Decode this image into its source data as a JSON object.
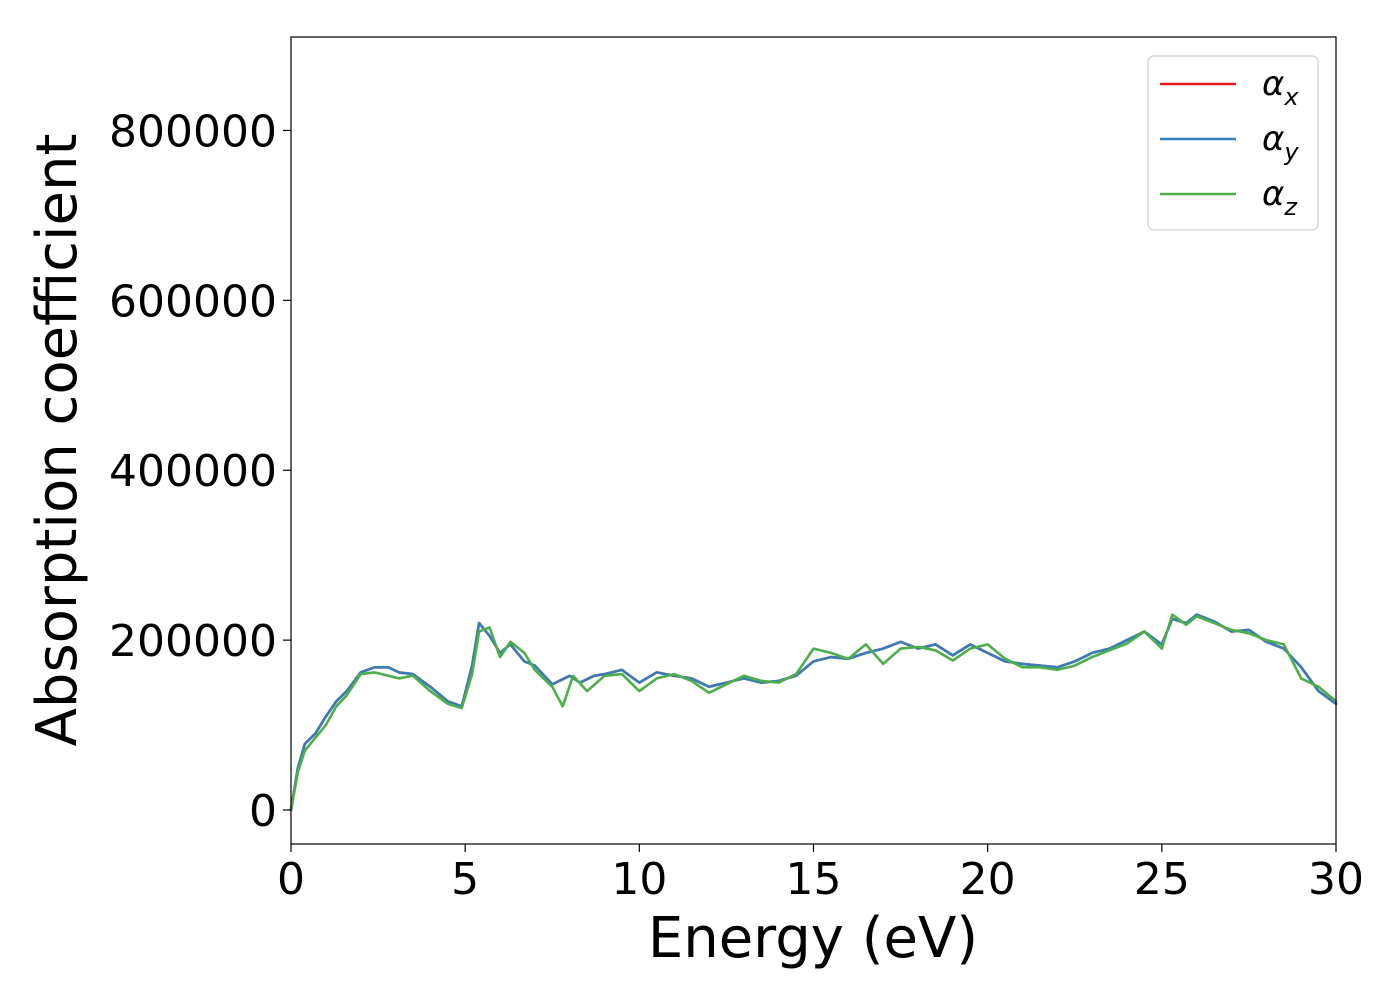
{
  "chart_data": {
    "type": "line",
    "title": "",
    "xlabel": "Energy (eV)",
    "ylabel": "Absorption coefficient",
    "xlim": [
      0,
      30
    ],
    "ylim": [
      -40000,
      910000
    ],
    "xticks": [
      0,
      5,
      10,
      15,
      20,
      25,
      30
    ],
    "xtick_labels": [
      "0",
      "5",
      "10",
      "15",
      "20",
      "25",
      "30"
    ],
    "yticks": [
      0,
      200000,
      400000,
      600000,
      800000
    ],
    "ytick_labels": [
      "0",
      "200000",
      "400000",
      "600000",
      "800000"
    ],
    "grid": false,
    "legend_position": "top-right",
    "series": [
      {
        "name": "αx",
        "symbol": "α",
        "sub": "x",
        "color": "#e41a1c",
        "x": [
          0,
          0.2,
          0.4,
          0.7,
          1,
          1.3,
          1.6,
          2,
          2.4,
          2.8,
          3.1,
          3.5,
          4,
          4.5,
          4.9,
          5.2,
          5.4,
          5.7,
          6,
          6.3,
          6.7,
          7,
          7.5,
          8,
          8.3,
          8.7,
          9,
          9.5,
          10,
          10.5,
          11,
          11.5,
          12,
          12.5,
          13,
          13.5,
          14,
          14.5,
          15,
          15.5,
          16,
          16.5,
          17,
          17.5,
          18,
          18.5,
          19,
          19.5,
          20,
          20.5,
          21,
          21.5,
          22,
          22.5,
          23,
          23.5,
          24,
          24.5,
          25,
          25.3,
          25.7,
          26,
          26.5,
          27,
          27.5,
          28,
          28.5,
          29,
          29.5,
          30
        ],
        "y": [
          0,
          50000,
          78000,
          90000,
          110000,
          128000,
          140000,
          162000,
          168000,
          168000,
          162000,
          160000,
          145000,
          128000,
          122000,
          170000,
          220000,
          205000,
          185000,
          195000,
          175000,
          170000,
          148000,
          158000,
          150000,
          158000,
          160000,
          165000,
          150000,
          162000,
          158000,
          155000,
          145000,
          150000,
          155000,
          150000,
          152000,
          158000,
          175000,
          180000,
          178000,
          185000,
          190000,
          198000,
          190000,
          195000,
          182000,
          195000,
          185000,
          175000,
          172000,
          170000,
          168000,
          175000,
          185000,
          190000,
          200000,
          210000,
          195000,
          225000,
          220000,
          230000,
          222000,
          210000,
          212000,
          198000,
          190000,
          168000,
          140000,
          125000
        ]
      },
      {
        "name": "αy",
        "symbol": "α",
        "sub": "y",
        "color": "#377eb8",
        "x": [
          0,
          0.2,
          0.4,
          0.7,
          1,
          1.3,
          1.6,
          2,
          2.4,
          2.8,
          3.1,
          3.5,
          4,
          4.5,
          4.9,
          5.2,
          5.4,
          5.7,
          6,
          6.3,
          6.7,
          7,
          7.5,
          8,
          8.3,
          8.7,
          9,
          9.5,
          10,
          10.5,
          11,
          11.5,
          12,
          12.5,
          13,
          13.5,
          14,
          14.5,
          15,
          15.5,
          16,
          16.5,
          17,
          17.5,
          18,
          18.5,
          19,
          19.5,
          20,
          20.5,
          21,
          21.5,
          22,
          22.5,
          23,
          23.5,
          24,
          24.5,
          25,
          25.3,
          25.7,
          26,
          26.5,
          27,
          27.5,
          28,
          28.5,
          29,
          29.5,
          30
        ],
        "y": [
          0,
          50000,
          78000,
          90000,
          110000,
          128000,
          140000,
          162000,
          168000,
          168000,
          162000,
          160000,
          145000,
          128000,
          122000,
          170000,
          220000,
          205000,
          185000,
          195000,
          175000,
          170000,
          148000,
          158000,
          150000,
          158000,
          160000,
          165000,
          150000,
          162000,
          158000,
          155000,
          145000,
          150000,
          155000,
          150000,
          152000,
          158000,
          175000,
          180000,
          178000,
          185000,
          190000,
          198000,
          190000,
          195000,
          182000,
          195000,
          185000,
          175000,
          172000,
          170000,
          168000,
          175000,
          185000,
          190000,
          200000,
          210000,
          195000,
          225000,
          220000,
          230000,
          222000,
          210000,
          212000,
          198000,
          190000,
          168000,
          140000,
          125000
        ]
      },
      {
        "name": "αz",
        "symbol": "α",
        "sub": "z",
        "color": "#4daf4a",
        "x": [
          0,
          0.2,
          0.4,
          0.7,
          1,
          1.3,
          1.6,
          2,
          2.4,
          2.8,
          3.1,
          3.5,
          4,
          4.5,
          4.9,
          5.2,
          5.4,
          5.7,
          6,
          6.3,
          6.7,
          7,
          7.5,
          7.8,
          8.1,
          8.5,
          9,
          9.5,
          10,
          10.5,
          11,
          11.5,
          12,
          12.5,
          13,
          13.5,
          14,
          14.5,
          15,
          15.5,
          16,
          16.5,
          17,
          17.5,
          18,
          18.5,
          19,
          19.5,
          20,
          20.5,
          21,
          21.5,
          22,
          22.5,
          23,
          23.5,
          24,
          24.5,
          25,
          25.3,
          25.7,
          26,
          26.5,
          27,
          27.5,
          28,
          28.5,
          29,
          29.5,
          30
        ],
        "y": [
          0,
          45000,
          70000,
          85000,
          100000,
          122000,
          135000,
          160000,
          162000,
          158000,
          155000,
          158000,
          140000,
          125000,
          120000,
          160000,
          210000,
          215000,
          180000,
          198000,
          185000,
          165000,
          145000,
          122000,
          158000,
          140000,
          158000,
          160000,
          140000,
          155000,
          160000,
          152000,
          138000,
          148000,
          158000,
          152000,
          150000,
          160000,
          190000,
          185000,
          178000,
          195000,
          172000,
          190000,
          192000,
          188000,
          176000,
          190000,
          195000,
          178000,
          168000,
          168000,
          165000,
          170000,
          180000,
          188000,
          196000,
          210000,
          190000,
          230000,
          218000,
          228000,
          220000,
          212000,
          208000,
          200000,
          195000,
          155000,
          145000,
          128000
        ]
      }
    ]
  }
}
